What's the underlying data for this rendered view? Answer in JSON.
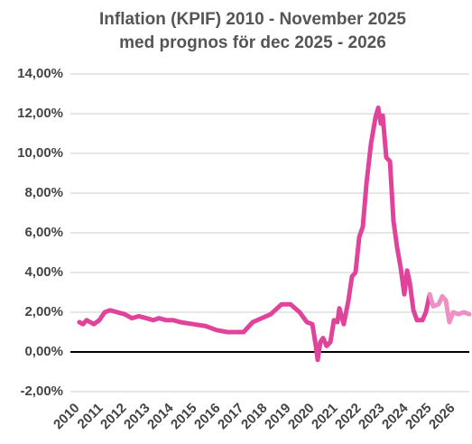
{
  "chart_data": {
    "type": "line",
    "title": [
      "Inflation (KPIF) 2010 - November 2025",
      "med prognos för dec 2025 - 2026"
    ],
    "xlim": [
      2010,
      2027
    ],
    "xticks": [
      2010,
      2011,
      2012,
      2013,
      2014,
      2015,
      2016,
      2017,
      2018,
      2019,
      2020,
      2021,
      2022,
      2023,
      2024,
      2025,
      2026
    ],
    "ylim": [
      -2,
      14
    ],
    "yticks": [
      {
        "value": -2,
        "label": "-2,00%"
      },
      {
        "value": 0,
        "label": "0,00%"
      },
      {
        "value": 2,
        "label": "2,00%"
      },
      {
        "value": 4,
        "label": "4,00%"
      },
      {
        "value": 6,
        "label": "6,00%"
      },
      {
        "value": 8,
        "label": "8,00%"
      },
      {
        "value": 10,
        "label": "10,00%"
      },
      {
        "value": 12,
        "label": "12,00%"
      },
      {
        "value": 14,
        "label": "14,00%"
      }
    ],
    "grid": true,
    "series": [
      {
        "color": "#e0449a",
        "x": [
          2010.38,
          2010.54,
          2010.69,
          2011.0,
          2011.23,
          2011.46,
          2011.69,
          2012.0,
          2012.31,
          2012.62,
          2012.92,
          2013.23,
          2013.54,
          2013.77,
          2014.08,
          2014.38,
          2014.69,
          2015.23,
          2015.77,
          2016.23,
          2016.69,
          2017.08,
          2017.38,
          2017.77,
          2018.15,
          2018.54,
          2019.0,
          2019.38,
          2019.77,
          2020.08,
          2020.31,
          2020.46,
          2020.54,
          2020.65,
          2020.77,
          2020.92,
          2021.08,
          2021.23,
          2021.38,
          2021.46,
          2021.65,
          2021.85,
          2022.0,
          2022.15,
          2022.31,
          2022.46,
          2022.62,
          2022.81,
          2023.0,
          2023.12,
          2023.23,
          2023.31,
          2023.46,
          2023.62,
          2023.77,
          2023.92,
          2024.08,
          2024.23,
          2024.35,
          2024.46,
          2024.62,
          2024.77,
          2025.0,
          2025.15,
          2025.31
        ],
        "values": [
          1.5,
          1.4,
          1.6,
          1.4,
          1.6,
          2.0,
          2.1,
          2.0,
          1.9,
          1.7,
          1.8,
          1.7,
          1.6,
          1.7,
          1.6,
          1.6,
          1.5,
          1.4,
          1.3,
          1.1,
          1.0,
          1.0,
          1.0,
          1.5,
          1.7,
          1.9,
          2.4,
          2.4,
          2.0,
          1.5,
          1.4,
          0.3,
          -0.4,
          0.5,
          0.7,
          0.3,
          0.5,
          1.6,
          1.5,
          2.2,
          1.4,
          2.6,
          3.8,
          4.0,
          5.8,
          6.3,
          8.5,
          10.5,
          11.8,
          12.3,
          11.5,
          11.9,
          9.8,
          9.6,
          6.6,
          5.3,
          4.2,
          2.9,
          4.1,
          3.5,
          2.1,
          1.6,
          1.6,
          2.0,
          2.9
        ]
      },
      {
        "color": "#ee90c4",
        "x": [
          2025.31,
          2025.46,
          2025.69,
          2025.85,
          2026.0,
          2026.15,
          2026.31,
          2026.54,
          2026.77,
          2027.0
        ],
        "values": [
          2.9,
          2.3,
          2.4,
          2.8,
          2.6,
          1.5,
          2.0,
          1.9,
          2.0,
          1.9
        ]
      }
    ]
  }
}
